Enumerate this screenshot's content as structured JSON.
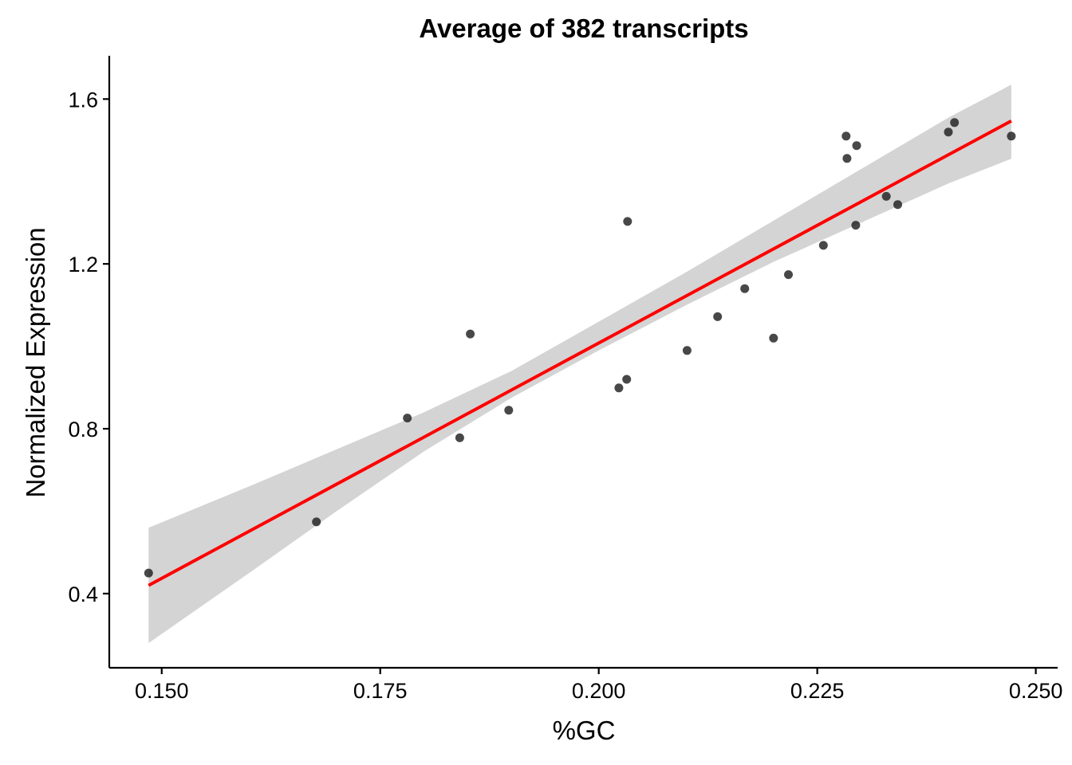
{
  "chart_data": {
    "type": "scatter",
    "title": "Average of 382 transcripts",
    "xlabel": "%GC",
    "ylabel": "Normalized Expression",
    "xlim": [
      0.144,
      0.2525
    ],
    "ylim": [
      0.22,
      1.705
    ],
    "x_ticks": [
      0.15,
      0.175,
      0.2,
      0.225,
      0.25
    ],
    "x_tick_labels": [
      "0.150",
      "0.175",
      "0.200",
      "0.225",
      "0.250"
    ],
    "y_ticks": [
      0.4,
      0.8,
      1.2,
      1.6
    ],
    "y_tick_labels": [
      "0.4",
      "0.8",
      "1.2",
      "1.6"
    ],
    "grid": false,
    "legend": "none",
    "colors": {
      "points": "#1a1a1a",
      "fit_line": "#ff0000",
      "ribbon": "#d4d4d4"
    },
    "points": [
      {
        "x": 0.1485,
        "y": 0.45
      },
      {
        "x": 0.1677,
        "y": 0.574
      },
      {
        "x": 0.1781,
        "y": 0.826
      },
      {
        "x": 0.1841,
        "y": 0.778
      },
      {
        "x": 0.1853,
        "y": 1.03
      },
      {
        "x": 0.1897,
        "y": 0.845
      },
      {
        "x": 0.2023,
        "y": 0.899
      },
      {
        "x": 0.2032,
        "y": 0.92
      },
      {
        "x": 0.2033,
        "y": 1.303
      },
      {
        "x": 0.2101,
        "y": 0.99
      },
      {
        "x": 0.2136,
        "y": 1.072
      },
      {
        "x": 0.2167,
        "y": 1.14
      },
      {
        "x": 0.22,
        "y": 1.02
      },
      {
        "x": 0.2217,
        "y": 1.174
      },
      {
        "x": 0.2257,
        "y": 1.245
      },
      {
        "x": 0.2283,
        "y": 1.51
      },
      {
        "x": 0.2284,
        "y": 1.456
      },
      {
        "x": 0.2294,
        "y": 1.294
      },
      {
        "x": 0.2295,
        "y": 1.487
      },
      {
        "x": 0.2329,
        "y": 1.364
      },
      {
        "x": 0.2342,
        "y": 1.344
      },
      {
        "x": 0.24,
        "y": 1.52
      },
      {
        "x": 0.2407,
        "y": 1.543
      },
      {
        "x": 0.2472,
        "y": 1.51
      }
    ],
    "fit_line": {
      "x": [
        0.1485,
        0.2472
      ],
      "y": [
        0.42,
        1.547
      ]
    },
    "confidence_band": {
      "x": [
        0.1485,
        0.16,
        0.17,
        0.18,
        0.19,
        0.2,
        0.21,
        0.22,
        0.23,
        0.24,
        0.2472
      ],
      "lower": [
        0.28,
        0.45,
        0.6,
        0.745,
        0.875,
        0.99,
        1.1,
        1.205,
        1.3,
        1.395,
        1.455
      ],
      "upper": [
        0.56,
        0.66,
        0.75,
        0.84,
        0.94,
        1.06,
        1.18,
        1.305,
        1.43,
        1.555,
        1.635
      ]
    }
  }
}
